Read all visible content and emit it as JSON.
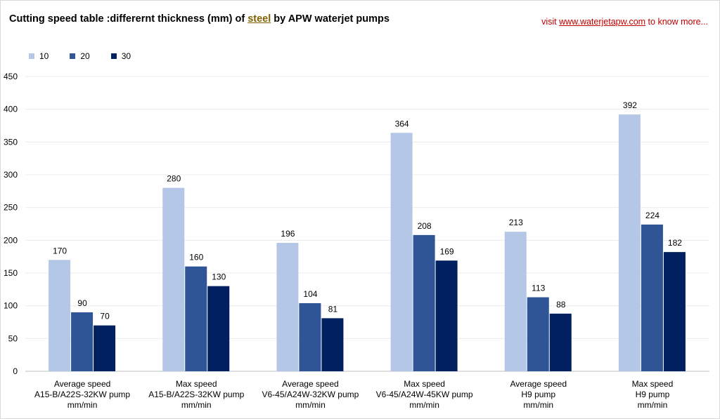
{
  "header": {
    "title_prefix": "Cutting speed table :differernt thickness (mm) of",
    "title_highlight": "steel",
    "title_suffix": "by APW waterjet pumps",
    "visit_prefix": "visit",
    "visit_link": "www.waterjetapw.com",
    "visit_suffix": "to know more..."
  },
  "colors": {
    "series_10": "#b4c7e7",
    "series_20": "#2f5597",
    "series_30": "#002060"
  },
  "chart_data": {
    "type": "bar",
    "title": "Cutting speed table :differernt thickness (mm) of steel by APW waterjet pumps",
    "categories": [
      [
        "Average speed",
        "A15-B/A22S-32KW  pump",
        "mm/min"
      ],
      [
        "Max speed",
        "A15-B/A22S-32KW   pump",
        "mm/min"
      ],
      [
        "Average speed",
        "V6-45/A24W-32KW pump",
        "mm/min"
      ],
      [
        "Max speed",
        "V6-45/A24W-45KW  pump",
        "mm/min"
      ],
      [
        "Average speed",
        "H9  pump",
        "mm/min"
      ],
      [
        "Max speed",
        "H9  pump",
        "mm/min"
      ]
    ],
    "series": [
      {
        "name": "10",
        "values": [
          170,
          280,
          196,
          364,
          213,
          392
        ]
      },
      {
        "name": "20",
        "values": [
          90,
          160,
          104,
          208,
          113,
          224
        ]
      },
      {
        "name": "30",
        "values": [
          70,
          130,
          81,
          169,
          88,
          182
        ]
      }
    ],
    "yticks": [
      0,
      50,
      100,
      150,
      200,
      250,
      300,
      350,
      400,
      450
    ],
    "ylim": [
      0,
      450
    ],
    "grid": true,
    "legend": "top-left",
    "xlabel": "",
    "ylabel": ""
  }
}
